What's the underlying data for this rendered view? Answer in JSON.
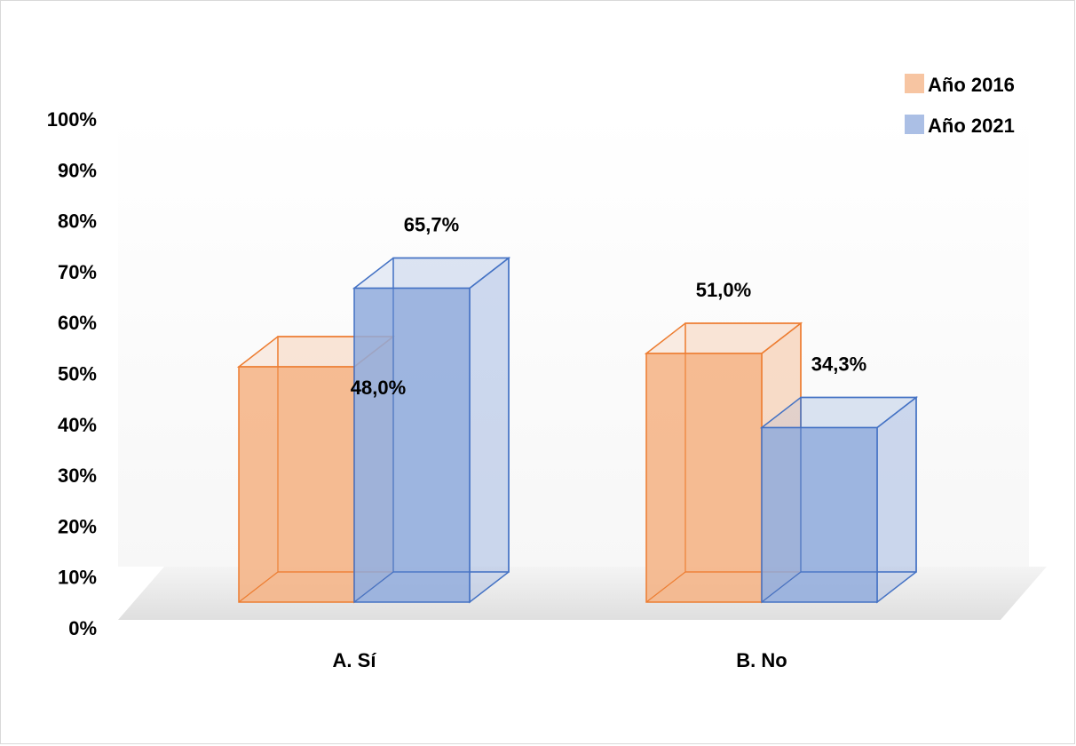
{
  "chart_data": {
    "type": "bar",
    "style": "3d-clustered-column",
    "categories": [
      "A. Sí",
      "B. No"
    ],
    "series": [
      {
        "name": "Año 2016",
        "values": [
          48.0,
          51.0
        ],
        "labels": [
          "48,0%",
          "51,0%"
        ],
        "color": "#f4b183",
        "edge": "#ed7d31"
      },
      {
        "name": "Año 2021",
        "values": [
          65.7,
          34.3
        ],
        "labels": [
          "65,7%",
          "34,3%"
        ],
        "color": "#8faadc",
        "edge": "#4472c4"
      }
    ],
    "ylim": [
      0,
      100
    ],
    "y_ticks": [
      "0%",
      "10%",
      "20%",
      "30%",
      "40%",
      "50%",
      "60%",
      "70%",
      "80%",
      "90%",
      "100%"
    ],
    "legend_position": "top-right",
    "grid": false
  }
}
